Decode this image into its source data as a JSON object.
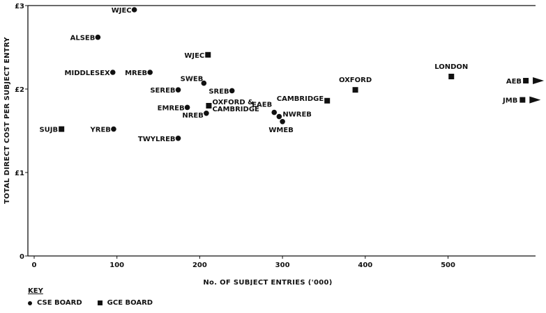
{
  "chart_data": {
    "type": "scatter",
    "title": "",
    "xlabel": "No. OF SUBJECT ENTRIES ('000)",
    "ylabel": "TOTAL DIRECT COST PER SUBJECT ENTRY",
    "xlim": [
      0,
      590
    ],
    "ylim": [
      0,
      3
    ],
    "xticks": [
      "0",
      "100",
      "200",
      "300",
      "400",
      "500"
    ],
    "yticks": [
      "0",
      "£1",
      "£2",
      "£3"
    ],
    "grid": false,
    "series": [
      {
        "name": "CSE BOARD",
        "marker": "circle",
        "points": [
          {
            "label": "WJEC",
            "x": 121,
            "y": 2.95
          },
          {
            "label": "ALSEB",
            "x": 77,
            "y": 2.62
          },
          {
            "label": "MIDDLESEX",
            "x": 95,
            "y": 2.2
          },
          {
            "label": "MREB",
            "x": 140,
            "y": 2.2
          },
          {
            "label": "SWEB",
            "x": 205,
            "y": 2.07
          },
          {
            "label": "SEREB",
            "x": 174,
            "y": 1.99
          },
          {
            "label": "SREB",
            "x": 239,
            "y": 1.98
          },
          {
            "label": "EMREB",
            "x": 185,
            "y": 1.78
          },
          {
            "label": "NREB",
            "x": 208,
            "y": 1.71
          },
          {
            "label": "YREB",
            "x": 96,
            "y": 1.52
          },
          {
            "label": "TWYLREB",
            "x": 174,
            "y": 1.41
          },
          {
            "label": "EAEB",
            "x": 290,
            "y": 1.72
          },
          {
            "label": "NWREB",
            "x": 296,
            "y": 1.67
          },
          {
            "label": "WMEB",
            "x": 300,
            "y": 1.61
          }
        ]
      },
      {
        "name": "GCE BOARD",
        "marker": "square",
        "points": [
          {
            "label": "WJEC",
            "x": 210,
            "y": 2.41
          },
          {
            "label": "SUJB",
            "x": 33,
            "y": 1.52
          },
          {
            "label": "OXFORD & CAMBRIDGE",
            "x": 211,
            "y": 1.8
          },
          {
            "label": "CAMBRIDGE",
            "x": 354,
            "y": 1.86
          },
          {
            "label": "OXFORD",
            "x": 388,
            "y": 1.99
          },
          {
            "label": "LONDON",
            "x": 504,
            "y": 2.15
          },
          {
            "label": "AEB",
            "x": 594,
            "y": 2.1
          },
          {
            "label": "JMB",
            "x": 590,
            "y": 1.87
          }
        ]
      }
    ],
    "key": {
      "title": "KEY",
      "items": [
        "CSE BOARD",
        "GCE BOARD"
      ]
    }
  }
}
